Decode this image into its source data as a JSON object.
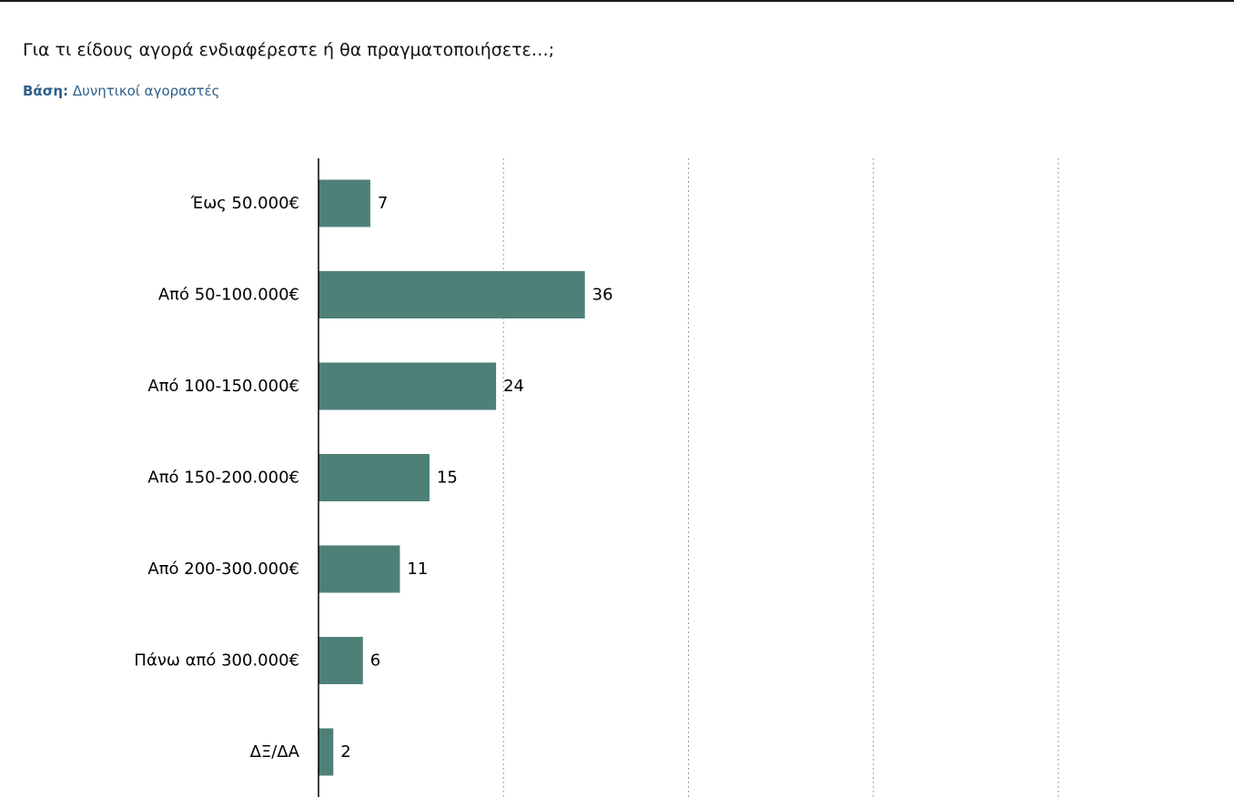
{
  "header": {
    "question": "Για τι είδους αγορά ενδιαφέρεστε ή θα πραγματοποιήσετε…;",
    "base_label": "Βάση:",
    "base_value": "Δυνητικοί αγοραστές"
  },
  "chart_data": {
    "type": "bar",
    "orientation": "horizontal",
    "categories": [
      "Έως 50.000€",
      "Από 50-100.000€",
      "Από 100-150.000€",
      "Από 150-200.000€",
      "Από 200-300.000€",
      "Πάνω από 300.000€",
      "ΔΞ/ΔΑ"
    ],
    "values": [
      7,
      36,
      24,
      15,
      11,
      6,
      2
    ],
    "xlim": [
      0,
      100
    ],
    "gridlines_at": [
      25,
      50,
      75,
      100
    ],
    "grid": "vertical-dotted",
    "data_labels": true,
    "bar_color": "#4e8078",
    "title": "",
    "xlabel": "",
    "ylabel": ""
  }
}
